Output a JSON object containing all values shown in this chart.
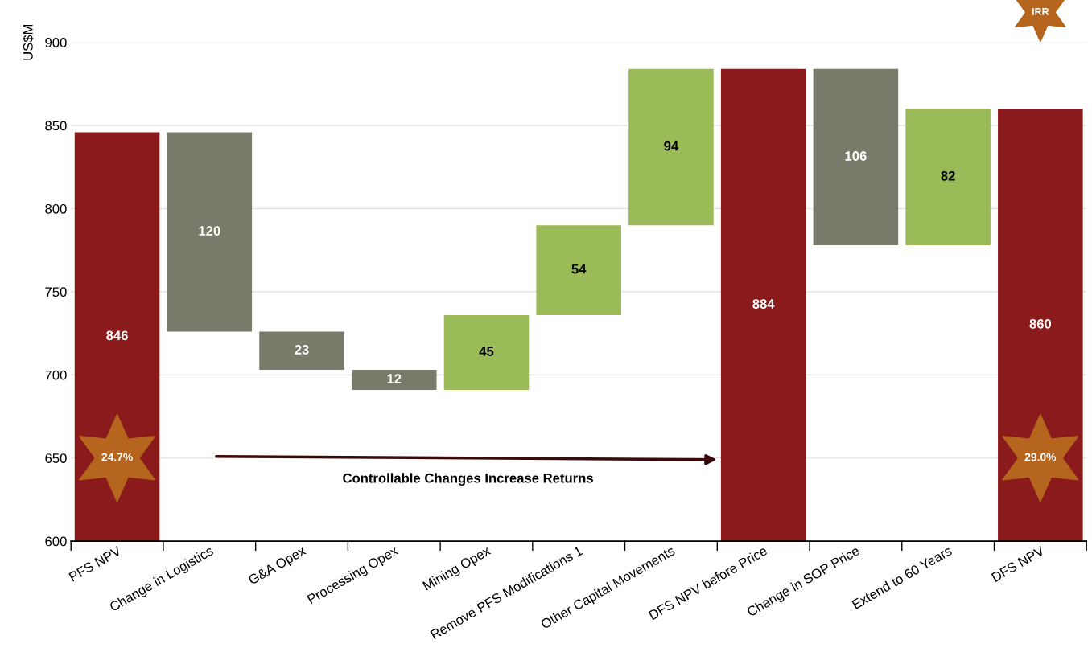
{
  "chart_data": {
    "type": "bar",
    "ylabel": "US$M",
    "categories": [
      "PFS NPV",
      "Change in Logistics",
      "G&A Opex",
      "Processing Opex",
      "Mining Opex",
      "Remove PFS Modifications 1",
      "Other Capital Movements",
      "DFS NPV before Price",
      "Change in SOP Price",
      "Extend to 60 Years",
      "DFS NPV"
    ],
    "base": [
      600,
      846,
      726,
      703,
      691,
      736,
      790,
      600,
      884,
      778,
      600
    ],
    "values": [
      246,
      -120,
      -23,
      -12,
      45,
      54,
      94,
      284,
      -106,
      82,
      260
    ],
    "value_labels": [
      "846",
      "120",
      "23",
      "12",
      "45",
      "54",
      "94",
      "884",
      "106",
      "82",
      "860"
    ],
    "colors": [
      "#8b1a1c",
      "#7a7a6a",
      "#7a7a6a",
      "#7a7a6a",
      "#9bbb59",
      "#9bbb59",
      "#9bbb59",
      "#8b1a1c",
      "#7a7a6a",
      "#9bbb59",
      "#8b1a1c"
    ],
    "ylim": [
      600,
      900
    ],
    "yticks": [
      600,
      650,
      700,
      750,
      800,
      850,
      900
    ],
    "grid": "y",
    "annotations": [
      "24.7%",
      "29.0%",
      "IRR",
      "Controllable Changes Increase Returns"
    ]
  }
}
